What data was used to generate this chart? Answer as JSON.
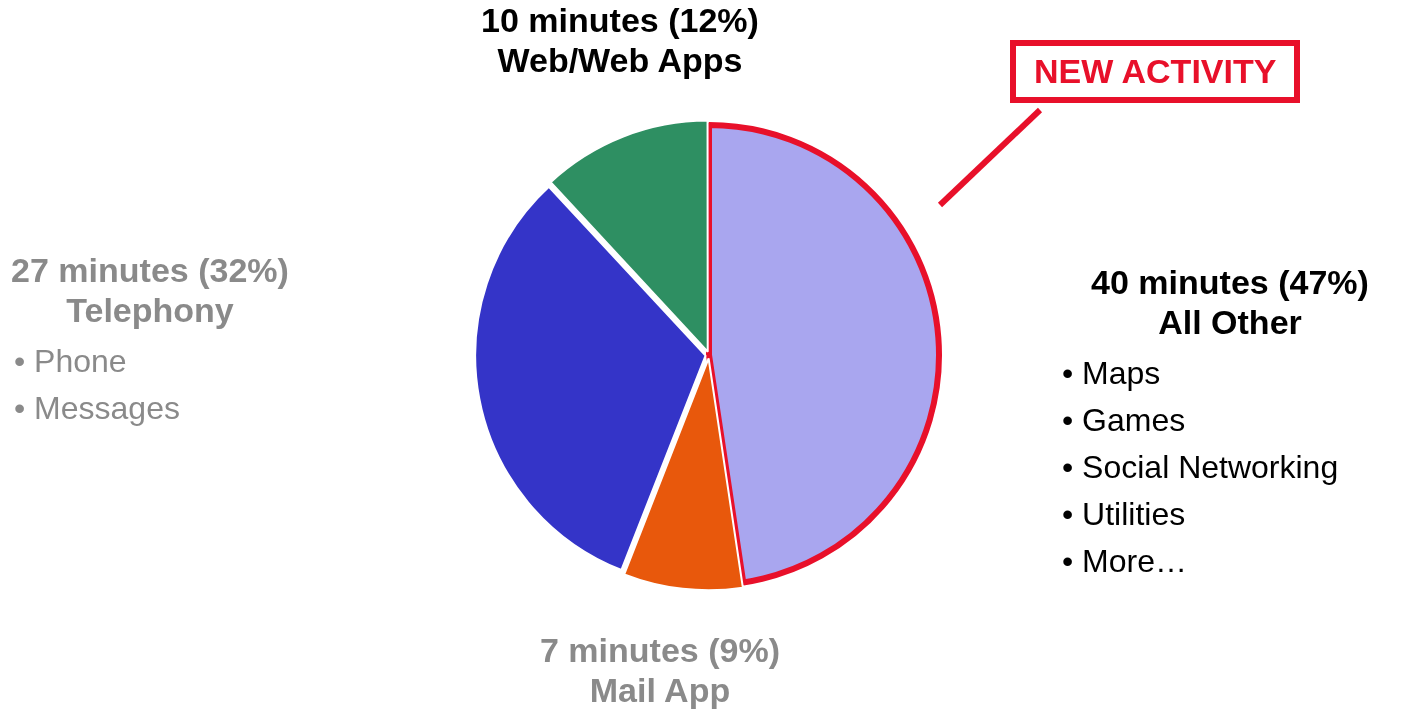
{
  "chart_data": {
    "type": "pie",
    "categories": [
      "All Other",
      "Mail App",
      "Telephony",
      "Web/Web Apps"
    ],
    "values": [
      40,
      7,
      27,
      10
    ],
    "value_labels": [
      "40 minutes (47%)",
      "7 minutes (9%)",
      "27 minutes (32%)",
      "10 minutes (12%)"
    ],
    "colors": [
      "#a9a6ef",
      "#e8580c",
      "#3434c8",
      "#2e8f62"
    ],
    "annotations": [
      "NEW ACTIVITY",
      "• Phone",
      "• Messages",
      "• Maps",
      "• Games",
      "• Social Networking",
      "• Utilities",
      "• More…"
    ],
    "legend": false
  }
}
